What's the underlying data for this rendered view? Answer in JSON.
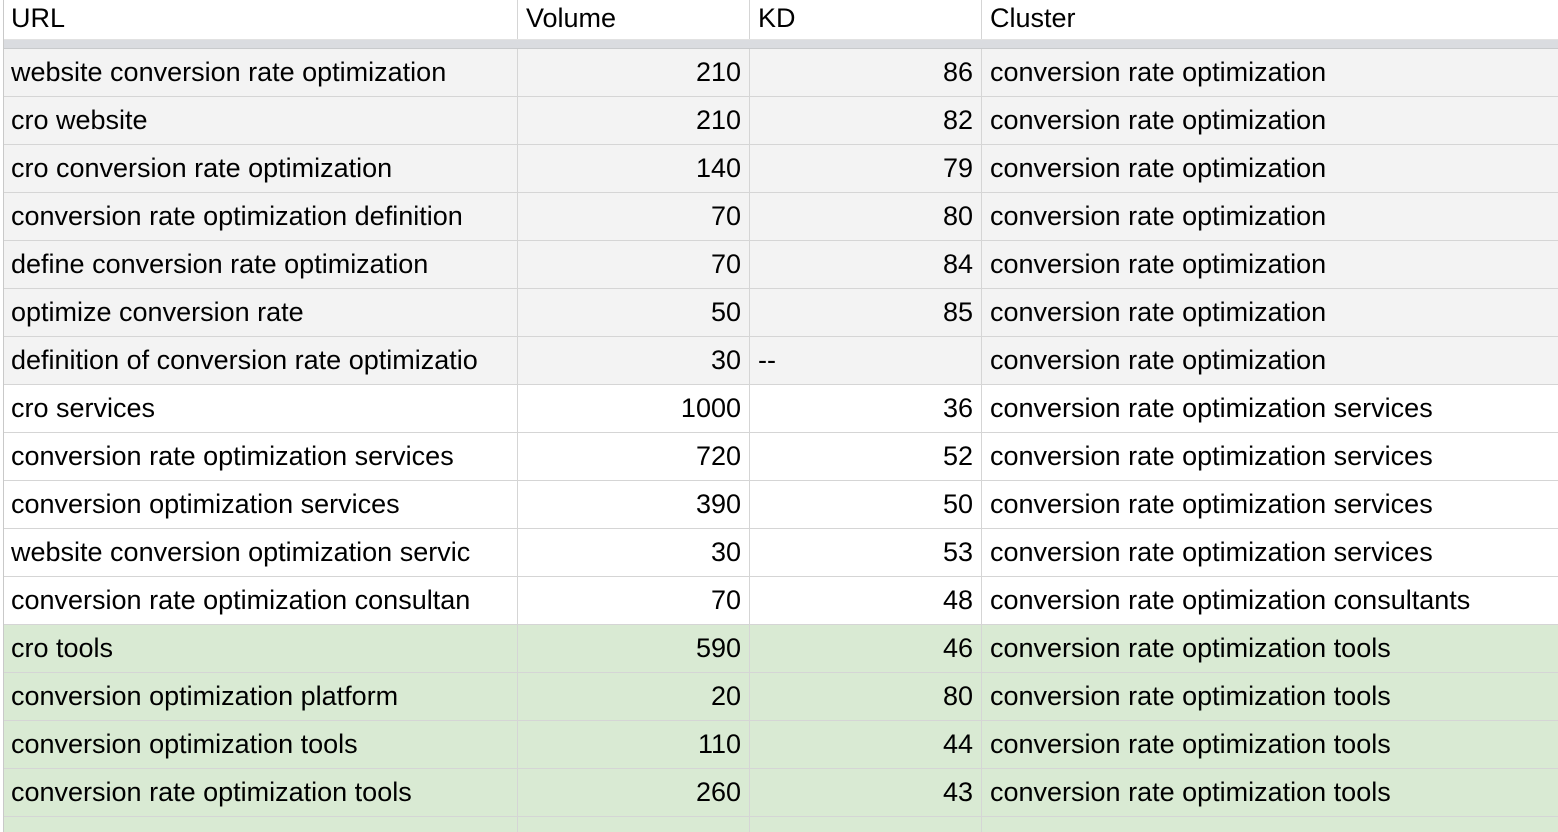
{
  "headers": {
    "url": "URL",
    "volume": "Volume",
    "kd": "KD",
    "cluster": "Cluster"
  },
  "colors": {
    "group_gray": "#f3f3f3",
    "group_white": "#ffffff",
    "group_green": "#d9ead3",
    "freeze_bar": "#dadce0"
  },
  "rows": [
    {
      "url": "website conversion rate optimization",
      "volume": "210",
      "kd": "86",
      "cluster": "conversion rate optimization",
      "group": "gray"
    },
    {
      "url": "cro website",
      "volume": "210",
      "kd": "82",
      "cluster": "conversion rate optimization",
      "group": "gray"
    },
    {
      "url": "cro conversion rate optimization",
      "volume": "140",
      "kd": "79",
      "cluster": "conversion rate optimization",
      "group": "gray"
    },
    {
      "url": "conversion rate optimization definition",
      "volume": "70",
      "kd": "80",
      "cluster": "conversion rate optimization",
      "group": "gray"
    },
    {
      "url": "define conversion rate optimization",
      "volume": "70",
      "kd": "84",
      "cluster": "conversion rate optimization",
      "group": "gray"
    },
    {
      "url": "optimize conversion rate",
      "volume": "50",
      "kd": "85",
      "cluster": "conversion rate optimization",
      "group": "gray"
    },
    {
      "url": "definition of conversion rate optimizatio",
      "volume": "30",
      "kd": "--",
      "cluster": "conversion rate optimization",
      "group": "gray"
    },
    {
      "url": "cro services",
      "volume": "1000",
      "kd": "36",
      "cluster": "conversion rate optimization services",
      "group": "white"
    },
    {
      "url": "conversion rate optimization services",
      "volume": "720",
      "kd": "52",
      "cluster": "conversion rate optimization services",
      "group": "white"
    },
    {
      "url": "conversion optimization services",
      "volume": "390",
      "kd": "50",
      "cluster": "conversion rate optimization services",
      "group": "white"
    },
    {
      "url": "website conversion optimization servic",
      "volume": "30",
      "kd": "53",
      "cluster": "conversion rate optimization services",
      "group": "white"
    },
    {
      "url": "conversion rate optimization consultan",
      "volume": "70",
      "kd": "48",
      "cluster": "conversion rate optimization consultants",
      "group": "white"
    },
    {
      "url": "cro tools",
      "volume": "590",
      "kd": "46",
      "cluster": "conversion rate optimization tools",
      "group": "green"
    },
    {
      "url": "conversion optimization platform",
      "volume": "20",
      "kd": "80",
      "cluster": "conversion rate optimization tools",
      "group": "green"
    },
    {
      "url": "conversion optimization tools",
      "volume": "110",
      "kd": "44",
      "cluster": "conversion rate optimization tools",
      "group": "green"
    },
    {
      "url": "conversion rate optimization tools",
      "volume": "260",
      "kd": "43",
      "cluster": "conversion rate optimization tools",
      "group": "green"
    }
  ]
}
